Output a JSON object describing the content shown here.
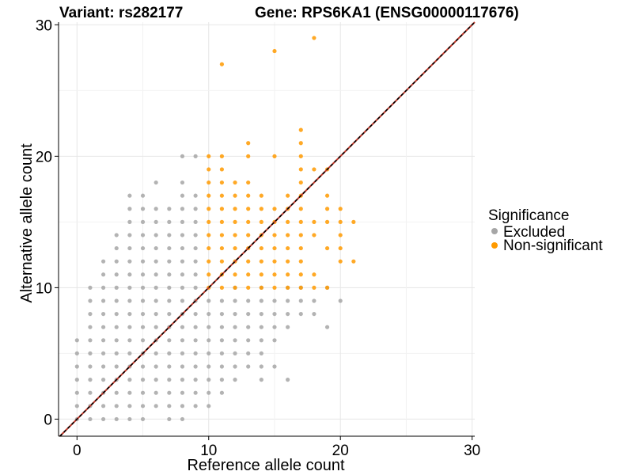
{
  "chart_data": {
    "type": "scatter",
    "title_variant": "Variant: rs282177",
    "title_gene": "Gene: RPS6KA1 (ENSG00000117676)",
    "xlabel": "Reference allele count",
    "ylabel": "Alternative allele count",
    "xlim": [
      -1.4,
      30.2
    ],
    "ylim": [
      -1.3,
      30.2
    ],
    "x_ticks": [
      0,
      10,
      20,
      30
    ],
    "y_ticks": [
      0,
      10,
      20,
      30
    ],
    "grid": true,
    "reference_line": "y = x",
    "legend": {
      "title": "Significance",
      "position": "right",
      "entries": [
        {
          "label": "Excluded",
          "color": "#a6a6a6"
        },
        {
          "label": "Non-significant",
          "color": "#ff9a00"
        }
      ]
    },
    "series": [
      {
        "name": "Excluded",
        "color": "#a6a6a6",
        "points": [
          [
            0,
            0
          ],
          [
            1,
            0
          ],
          [
            2,
            0
          ],
          [
            3,
            0
          ],
          [
            4,
            0
          ],
          [
            5,
            0
          ],
          [
            7,
            0
          ],
          [
            8,
            0
          ],
          [
            0,
            1
          ],
          [
            1,
            1
          ],
          [
            2,
            1
          ],
          [
            3,
            1
          ],
          [
            4,
            1
          ],
          [
            5,
            1
          ],
          [
            6,
            1
          ],
          [
            7,
            1
          ],
          [
            8,
            1
          ],
          [
            9,
            1
          ],
          [
            10,
            1
          ],
          [
            0,
            2
          ],
          [
            1,
            2
          ],
          [
            2,
            2
          ],
          [
            3,
            2
          ],
          [
            4,
            2
          ],
          [
            5,
            2
          ],
          [
            6,
            2
          ],
          [
            7,
            2
          ],
          [
            8,
            2
          ],
          [
            9,
            2
          ],
          [
            10,
            2
          ],
          [
            11,
            2
          ],
          [
            0,
            3
          ],
          [
            1,
            3
          ],
          [
            2,
            3
          ],
          [
            3,
            3
          ],
          [
            4,
            3
          ],
          [
            5,
            3
          ],
          [
            6,
            3
          ],
          [
            7,
            3
          ],
          [
            8,
            3
          ],
          [
            9,
            3
          ],
          [
            10,
            3
          ],
          [
            11,
            3
          ],
          [
            12,
            3
          ],
          [
            14,
            3
          ],
          [
            16,
            3
          ],
          [
            0,
            4
          ],
          [
            1,
            4
          ],
          [
            2,
            4
          ],
          [
            3,
            4
          ],
          [
            4,
            4
          ],
          [
            5,
            4
          ],
          [
            6,
            4
          ],
          [
            7,
            4
          ],
          [
            8,
            4
          ],
          [
            9,
            4
          ],
          [
            10,
            4
          ],
          [
            11,
            4
          ],
          [
            12,
            4
          ],
          [
            13,
            4
          ],
          [
            14,
            4
          ],
          [
            15,
            4
          ],
          [
            0,
            5
          ],
          [
            1,
            5
          ],
          [
            2,
            5
          ],
          [
            3,
            5
          ],
          [
            4,
            5
          ],
          [
            5,
            5
          ],
          [
            6,
            5
          ],
          [
            7,
            5
          ],
          [
            8,
            5
          ],
          [
            9,
            5
          ],
          [
            10,
            5
          ],
          [
            11,
            5
          ],
          [
            12,
            5
          ],
          [
            13,
            5
          ],
          [
            14,
            5
          ],
          [
            0,
            6
          ],
          [
            1,
            6
          ],
          [
            2,
            6
          ],
          [
            3,
            6
          ],
          [
            4,
            6
          ],
          [
            5,
            6
          ],
          [
            6,
            6
          ],
          [
            7,
            6
          ],
          [
            8,
            6
          ],
          [
            9,
            6
          ],
          [
            10,
            6
          ],
          [
            11,
            6
          ],
          [
            12,
            6
          ],
          [
            13,
            6
          ],
          [
            14,
            6
          ],
          [
            15,
            6
          ],
          [
            1,
            7
          ],
          [
            2,
            7
          ],
          [
            3,
            7
          ],
          [
            4,
            7
          ],
          [
            5,
            7
          ],
          [
            6,
            7
          ],
          [
            7,
            7
          ],
          [
            8,
            7
          ],
          [
            9,
            7
          ],
          [
            10,
            7
          ],
          [
            11,
            7
          ],
          [
            12,
            7
          ],
          [
            13,
            7
          ],
          [
            14,
            7
          ],
          [
            15,
            7
          ],
          [
            16,
            7
          ],
          [
            19,
            7
          ],
          [
            1,
            8
          ],
          [
            2,
            8
          ],
          [
            3,
            8
          ],
          [
            4,
            8
          ],
          [
            5,
            8
          ],
          [
            6,
            8
          ],
          [
            7,
            8
          ],
          [
            8,
            8
          ],
          [
            9,
            8
          ],
          [
            10,
            8
          ],
          [
            11,
            8
          ],
          [
            12,
            8
          ],
          [
            13,
            8
          ],
          [
            14,
            8
          ],
          [
            15,
            8
          ],
          [
            16,
            8
          ],
          [
            17,
            8
          ],
          [
            18,
            8
          ],
          [
            1,
            9
          ],
          [
            2,
            9
          ],
          [
            3,
            9
          ],
          [
            4,
            9
          ],
          [
            5,
            9
          ],
          [
            6,
            9
          ],
          [
            7,
            9
          ],
          [
            8,
            9
          ],
          [
            9,
            9
          ],
          [
            10,
            9
          ],
          [
            11,
            9
          ],
          [
            12,
            9
          ],
          [
            13,
            9
          ],
          [
            14,
            9
          ],
          [
            15,
            9
          ],
          [
            16,
            9
          ],
          [
            17,
            9
          ],
          [
            18,
            9
          ],
          [
            20,
            9
          ],
          [
            1,
            10
          ],
          [
            2,
            10
          ],
          [
            3,
            10
          ],
          [
            4,
            10
          ],
          [
            5,
            10
          ],
          [
            6,
            10
          ],
          [
            7,
            10
          ],
          [
            8,
            10
          ],
          [
            9,
            10
          ],
          [
            12,
            10
          ],
          [
            14,
            10
          ],
          [
            16,
            10
          ],
          [
            17,
            10
          ],
          [
            19,
            10
          ],
          [
            2,
            11
          ],
          [
            3,
            11
          ],
          [
            4,
            11
          ],
          [
            5,
            11
          ],
          [
            6,
            11
          ],
          [
            7,
            11
          ],
          [
            8,
            11
          ],
          [
            9,
            11
          ],
          [
            2,
            12
          ],
          [
            3,
            12
          ],
          [
            4,
            12
          ],
          [
            5,
            12
          ],
          [
            6,
            12
          ],
          [
            7,
            12
          ],
          [
            8,
            12
          ],
          [
            9,
            12
          ],
          [
            3,
            13
          ],
          [
            4,
            13
          ],
          [
            5,
            13
          ],
          [
            6,
            13
          ],
          [
            7,
            13
          ],
          [
            8,
            13
          ],
          [
            9,
            13
          ],
          [
            3,
            14
          ],
          [
            4,
            14
          ],
          [
            5,
            14
          ],
          [
            6,
            14
          ],
          [
            7,
            14
          ],
          [
            8,
            14
          ],
          [
            9,
            14
          ],
          [
            4,
            15
          ],
          [
            5,
            15
          ],
          [
            6,
            15
          ],
          [
            7,
            15
          ],
          [
            8,
            15
          ],
          [
            9,
            15
          ],
          [
            4,
            16
          ],
          [
            5,
            16
          ],
          [
            6,
            16
          ],
          [
            7,
            16
          ],
          [
            8,
            16
          ],
          [
            9,
            16
          ],
          [
            4,
            17
          ],
          [
            5,
            17
          ],
          [
            8,
            17
          ],
          [
            9,
            17
          ],
          [
            6,
            18
          ],
          [
            8,
            18
          ],
          [
            8,
            20
          ],
          [
            9,
            20
          ]
        ]
      },
      {
        "name": "Non-significant",
        "color": "#ff9a00",
        "points": [
          [
            11,
            27
          ],
          [
            15,
            28
          ],
          [
            18,
            29
          ],
          [
            17,
            22
          ],
          [
            13,
            21
          ],
          [
            17,
            21
          ],
          [
            10,
            20
          ],
          [
            11,
            20
          ],
          [
            13,
            20
          ],
          [
            15,
            20
          ],
          [
            17,
            20
          ],
          [
            10,
            19
          ],
          [
            11,
            19
          ],
          [
            17,
            19
          ],
          [
            18,
            19
          ],
          [
            19,
            19
          ],
          [
            10,
            18
          ],
          [
            11,
            18
          ],
          [
            12,
            18
          ],
          [
            13,
            18
          ],
          [
            17,
            18
          ],
          [
            10,
            17
          ],
          [
            11,
            17
          ],
          [
            12,
            17
          ],
          [
            13,
            17
          ],
          [
            14,
            17
          ],
          [
            16,
            17
          ],
          [
            17,
            17
          ],
          [
            19,
            17
          ],
          [
            10,
            16
          ],
          [
            11,
            16
          ],
          [
            12,
            16
          ],
          [
            13,
            16
          ],
          [
            14,
            16
          ],
          [
            15,
            16
          ],
          [
            16,
            16
          ],
          [
            17,
            16
          ],
          [
            19,
            16
          ],
          [
            20,
            16
          ],
          [
            10,
            15
          ],
          [
            11,
            15
          ],
          [
            12,
            15
          ],
          [
            13,
            15
          ],
          [
            14,
            15
          ],
          [
            15,
            15
          ],
          [
            16,
            15
          ],
          [
            17,
            15
          ],
          [
            18,
            15
          ],
          [
            19,
            15
          ],
          [
            20,
            15
          ],
          [
            21,
            15
          ],
          [
            10,
            14
          ],
          [
            11,
            14
          ],
          [
            12,
            14
          ],
          [
            13,
            14
          ],
          [
            14,
            14
          ],
          [
            15,
            14
          ],
          [
            16,
            14
          ],
          [
            17,
            14
          ],
          [
            18,
            14
          ],
          [
            20,
            14
          ],
          [
            10,
            13
          ],
          [
            11,
            13
          ],
          [
            12,
            13
          ],
          [
            13,
            13
          ],
          [
            14,
            13
          ],
          [
            15,
            13
          ],
          [
            16,
            13
          ],
          [
            17,
            13
          ],
          [
            19,
            13
          ],
          [
            20,
            13
          ],
          [
            10,
            12
          ],
          [
            11,
            12
          ],
          [
            12,
            12
          ],
          [
            13,
            12
          ],
          [
            14,
            12
          ],
          [
            15,
            12
          ],
          [
            16,
            12
          ],
          [
            17,
            12
          ],
          [
            20,
            12
          ],
          [
            21,
            12
          ],
          [
            10,
            11
          ],
          [
            11,
            11
          ],
          [
            12,
            11
          ],
          [
            13,
            11
          ],
          [
            14,
            11
          ],
          [
            15,
            11
          ],
          [
            16,
            11
          ],
          [
            17,
            11
          ],
          [
            18,
            11
          ],
          [
            10,
            10
          ],
          [
            11,
            10
          ],
          [
            12,
            10
          ],
          [
            13,
            10
          ],
          [
            14,
            10
          ],
          [
            15,
            10
          ],
          [
            16,
            10
          ],
          [
            17,
            10
          ],
          [
            18,
            10
          ],
          [
            19,
            10
          ]
        ]
      }
    ]
  }
}
